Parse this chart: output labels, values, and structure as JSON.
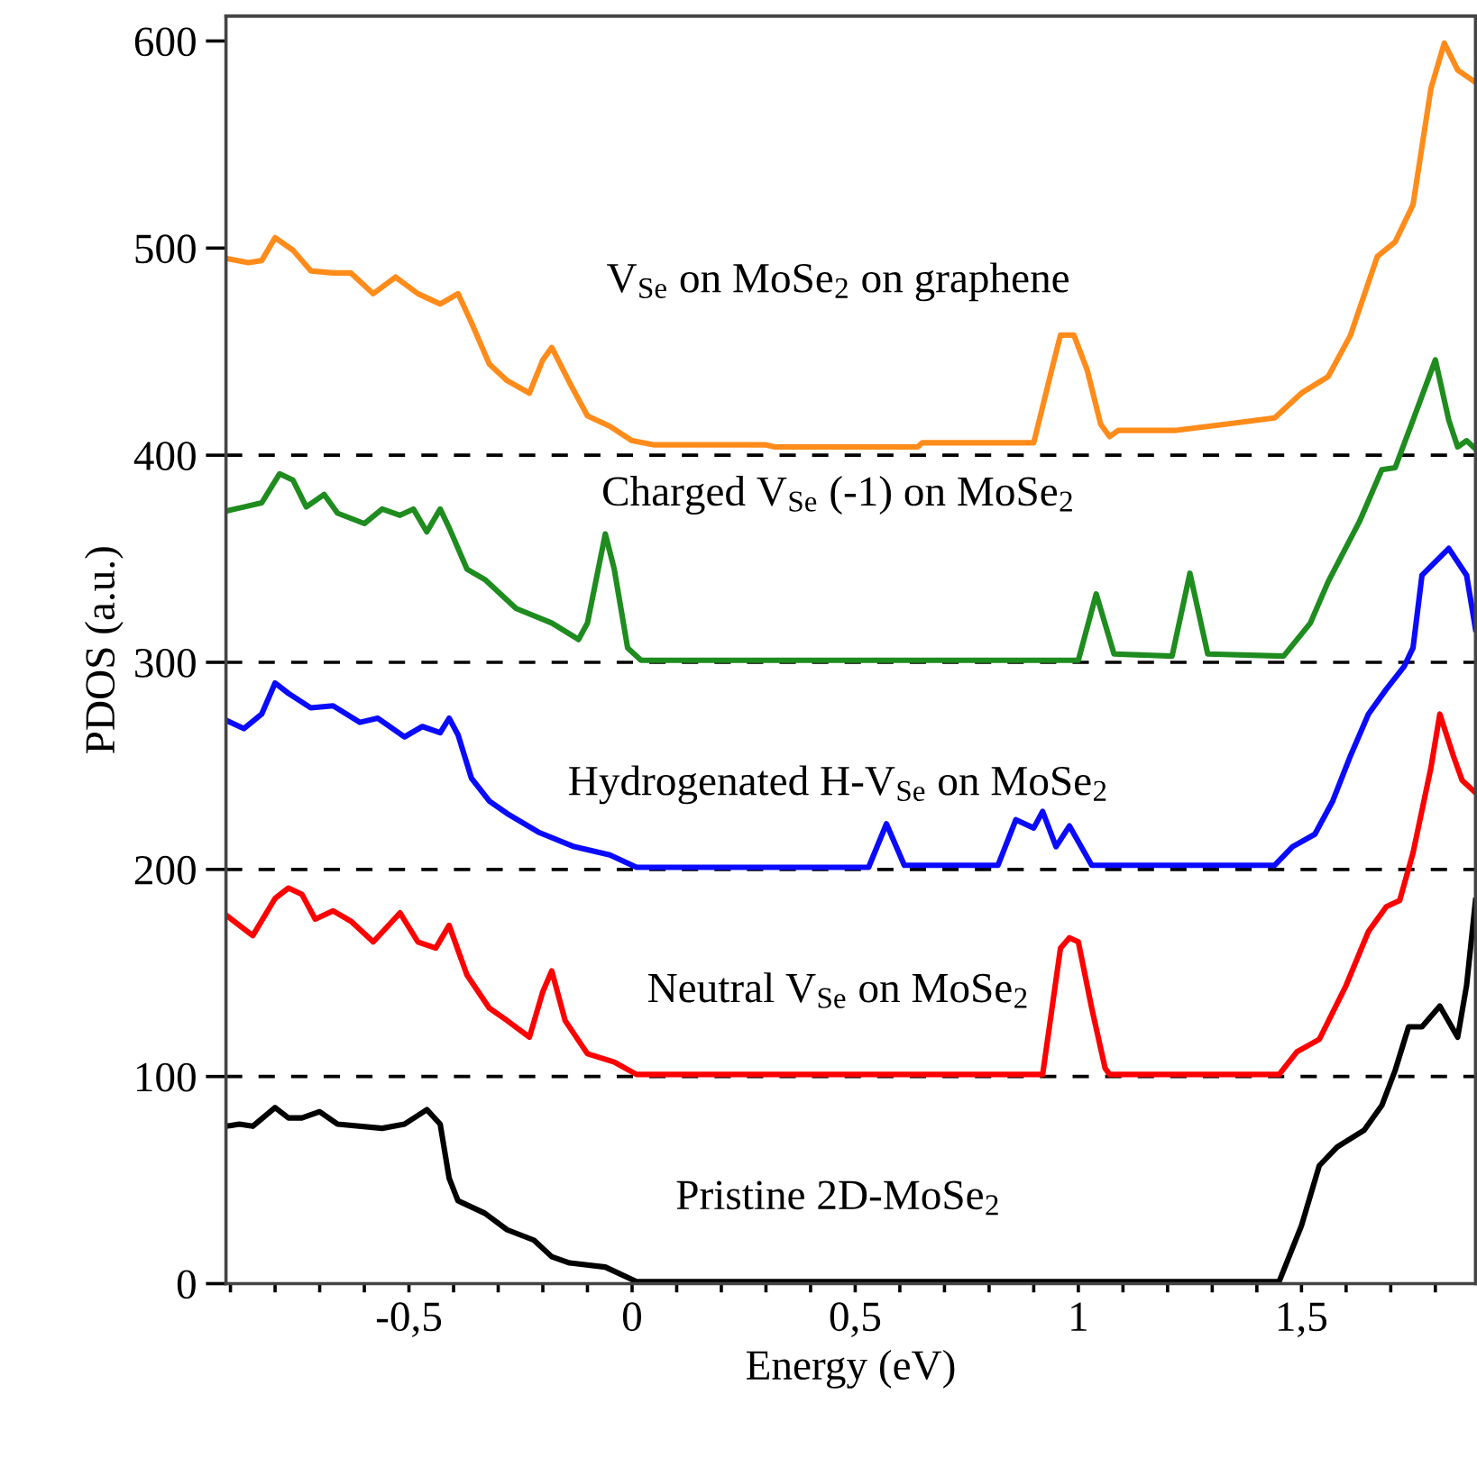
{
  "chart_data": {
    "type": "line",
    "xlabel": "Energy (eV)",
    "ylabel": "PDOS (a.u.)",
    "xlim": [
      -0.91,
      1.89
    ],
    "ylim": [
      0,
      612
    ],
    "xticks": [
      {
        "value": -0.9,
        "label": null
      },
      {
        "value": -0.8,
        "label": null
      },
      {
        "value": -0.7,
        "label": null
      },
      {
        "value": -0.6,
        "label": null
      },
      {
        "value": -0.5,
        "label": "-0,5"
      },
      {
        "value": -0.4,
        "label": null
      },
      {
        "value": -0.3,
        "label": null
      },
      {
        "value": -0.2,
        "label": null
      },
      {
        "value": -0.1,
        "label": null
      },
      0,
      {
        "value": 0.1,
        "label": null
      },
      {
        "value": 0.2,
        "label": null
      },
      {
        "value": 0.3,
        "label": null
      },
      {
        "value": 0.4,
        "label": null
      },
      {
        "value": 0.5,
        "label": "0,5"
      },
      {
        "value": 0.6,
        "label": null
      },
      {
        "value": 0.7,
        "label": null
      },
      {
        "value": 0.8,
        "label": null
      },
      {
        "value": 0.9,
        "label": null
      },
      1,
      {
        "value": 1.1,
        "label": null
      },
      {
        "value": 1.2,
        "label": null
      },
      {
        "value": 1.3,
        "label": null
      },
      {
        "value": 1.4,
        "label": null
      },
      {
        "value": 1.5,
        "label": "1,5"
      },
      {
        "value": 1.6,
        "label": null
      },
      {
        "value": 1.7,
        "label": null
      },
      {
        "value": 1.8,
        "label": null
      }
    ],
    "yticks": [
      0,
      100,
      200,
      300,
      400,
      500,
      600
    ],
    "grid": false,
    "legend": false,
    "line_style": "solid",
    "marker": "none",
    "ref_lines": [
      {
        "axis": "y",
        "value": 100,
        "color": "#000000",
        "line_style": "dashed"
      },
      {
        "axis": "y",
        "value": 200,
        "color": "#000000",
        "line_style": "dashed"
      },
      {
        "axis": "y",
        "value": 300,
        "color": "#000000",
        "line_style": "dashed"
      },
      {
        "axis": "y",
        "value": 400,
        "color": "#000000",
        "line_style": "dashed"
      }
    ],
    "series": [
      {
        "name": "V$_{Se}$ on MoSe$_{2}$ on graphene",
        "color": "#ff8c1a",
        "x": [
          -0.91,
          -0.86,
          -0.83,
          -0.8,
          -0.76,
          -0.72,
          -0.67,
          -0.63,
          -0.58,
          -0.53,
          -0.48,
          -0.43,
          -0.39,
          -0.36,
          -0.32,
          -0.28,
          -0.23,
          -0.2,
          -0.18,
          -0.14,
          -0.1,
          -0.05,
          0.0,
          0.05,
          0.3,
          0.32,
          0.64,
          0.65,
          0.9,
          0.94,
          0.96,
          0.99,
          1.02,
          1.05,
          1.07,
          1.09,
          1.22,
          1.33,
          1.44,
          1.5,
          1.56,
          1.61,
          1.67,
          1.71,
          1.75,
          1.79,
          1.82,
          1.85,
          1.89
        ],
        "values": [
          495,
          493,
          494,
          505,
          499,
          489,
          488,
          488,
          478,
          486,
          478,
          473,
          478,
          464,
          444,
          436,
          430,
          446,
          452,
          435,
          419,
          414,
          407,
          405,
          405,
          404,
          404,
          406,
          406,
          441,
          458,
          458,
          441,
          415,
          409,
          412,
          412,
          415,
          418,
          430,
          438,
          458,
          496,
          503,
          521,
          577,
          599,
          586,
          580
        ]
      },
      {
        "name": "Charged V$_{Se}$ (-1) on MoSe$_{2}$",
        "color": "#1e8c1e",
        "x": [
          -0.91,
          -0.87,
          -0.83,
          -0.79,
          -0.76,
          -0.73,
          -0.69,
          -0.66,
          -0.6,
          -0.56,
          -0.52,
          -0.49,
          -0.46,
          -0.43,
          -0.41,
          -0.37,
          -0.33,
          -0.26,
          -0.18,
          -0.12,
          -0.1,
          -0.06,
          -0.04,
          -0.01,
          0.02,
          1.0,
          1.04,
          1.08,
          1.21,
          1.25,
          1.29,
          1.46,
          1.52,
          1.56,
          1.63,
          1.68,
          1.71,
          1.75,
          1.8,
          1.83,
          1.85,
          1.87,
          1.89
        ],
        "values": [
          373,
          375,
          377,
          391,
          388,
          375,
          381,
          372,
          367,
          374,
          371,
          374,
          363,
          374,
          365,
          345,
          340,
          326,
          319,
          311,
          319,
          362,
          345,
          307,
          301,
          301,
          333,
          304,
          303,
          343,
          304,
          303,
          319,
          339,
          368,
          393,
          394,
          417,
          446,
          417,
          404,
          407,
          403
        ]
      },
      {
        "name": "Hydrogenated H-V$_{Se}$ on MoSe$_{2}$",
        "color": "#0a0aff",
        "x": [
          -0.91,
          -0.87,
          -0.83,
          -0.8,
          -0.77,
          -0.72,
          -0.67,
          -0.61,
          -0.57,
          -0.51,
          -0.47,
          -0.43,
          -0.41,
          -0.39,
          -0.36,
          -0.32,
          -0.28,
          -0.21,
          -0.13,
          -0.05,
          0.01,
          0.53,
          0.57,
          0.61,
          0.82,
          0.86,
          0.9,
          0.92,
          0.95,
          0.98,
          1.03,
          1.44,
          1.48,
          1.53,
          1.57,
          1.61,
          1.65,
          1.69,
          1.73,
          1.75,
          1.77,
          1.83,
          1.87,
          1.89
        ],
        "values": [
          272,
          268,
          275,
          290,
          285,
          278,
          279,
          271,
          273,
          264,
          269,
          266,
          273,
          265,
          244,
          233,
          227,
          218,
          211,
          207,
          201,
          201,
          222,
          202,
          202,
          224,
          220,
          228,
          211,
          221,
          202,
          202,
          211,
          217,
          233,
          255,
          275,
          287,
          298,
          307,
          342,
          355,
          342,
          316
        ]
      },
      {
        "name": "Neutral V$_{Se}$ on MoSe$_{2}$",
        "color": "#ff0000",
        "x": [
          -0.91,
          -0.85,
          -0.8,
          -0.77,
          -0.74,
          -0.71,
          -0.67,
          -0.63,
          -0.58,
          -0.52,
          -0.48,
          -0.44,
          -0.41,
          -0.37,
          -0.32,
          -0.28,
          -0.23,
          -0.2,
          -0.18,
          -0.15,
          -0.1,
          -0.04,
          0.01,
          0.92,
          0.96,
          0.98,
          1.0,
          1.03,
          1.06,
          1.07,
          1.45,
          1.49,
          1.54,
          1.6,
          1.65,
          1.69,
          1.72,
          1.75,
          1.79,
          1.81,
          1.84,
          1.86,
          1.89
        ],
        "values": [
          178,
          168,
          186,
          191,
          188,
          176,
          180,
          175,
          165,
          179,
          165,
          162,
          173,
          149,
          133,
          127,
          119,
          141,
          151,
          127,
          111,
          107,
          101,
          101,
          162,
          167,
          165,
          133,
          104,
          101,
          101,
          112,
          118,
          144,
          170,
          182,
          185,
          208,
          249,
          275,
          255,
          243,
          237
        ]
      },
      {
        "name": "Pristine 2D-MoSe$_{2}$",
        "color": "#000000",
        "x": [
          -0.91,
          -0.88,
          -0.85,
          -0.8,
          -0.77,
          -0.74,
          -0.7,
          -0.66,
          -0.56,
          -0.51,
          -0.46,
          -0.43,
          -0.41,
          -0.39,
          -0.33,
          -0.28,
          -0.22,
          -0.18,
          -0.14,
          -0.06,
          0.01,
          1.45,
          1.5,
          1.54,
          1.58,
          1.64,
          1.68,
          1.71,
          1.74,
          1.77,
          1.81,
          1.85,
          1.87,
          1.89
        ],
        "values": [
          76,
          77,
          76,
          85,
          80,
          80,
          83,
          77,
          75,
          77,
          84,
          77,
          51,
          40,
          34,
          26,
          21,
          13,
          10,
          8,
          1,
          1,
          28,
          57,
          66,
          74,
          86,
          103,
          124,
          124,
          134,
          119,
          144,
          185
        ]
      }
    ]
  }
}
